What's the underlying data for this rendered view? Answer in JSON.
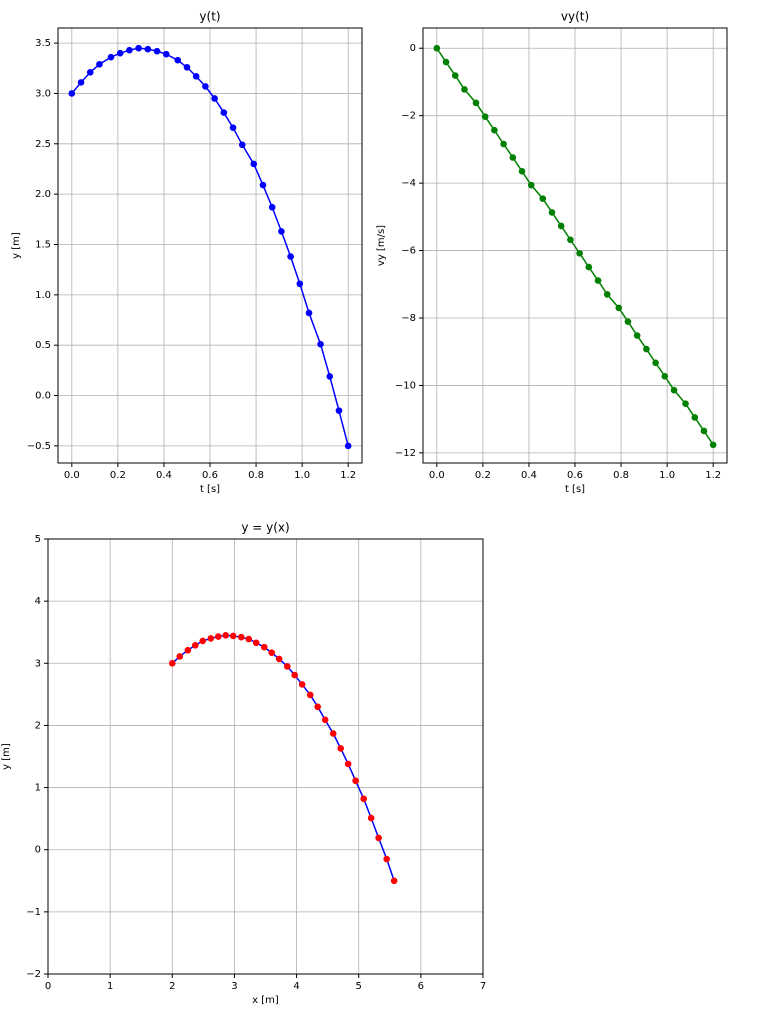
{
  "chart_data": [
    {
      "type": "line",
      "title": "y(t)",
      "xlabel": "t [s]",
      "ylabel": "y [m]",
      "x": [
        0,
        0.04,
        0.08,
        0.12,
        0.17,
        0.21,
        0.25,
        0.29,
        0.33,
        0.37,
        0.41,
        0.46,
        0.5,
        0.54,
        0.58,
        0.62,
        0.66,
        0.7,
        0.74,
        0.79,
        0.83,
        0.87,
        0.91,
        0.95,
        0.99,
        1.03,
        1.08,
        1.12,
        1.16,
        1.2
      ],
      "series": [
        {
          "color": "#0000ff",
          "marker_color": "#0000ff",
          "values": [
            3,
            3.11,
            3.21,
            3.29,
            3.36,
            3.4,
            3.43,
            3.45,
            3.44,
            3.42,
            3.39,
            3.33,
            3.26,
            3.17,
            3.07,
            2.95,
            2.81,
            2.66,
            2.49,
            2.3,
            2.09,
            1.87,
            1.63,
            1.38,
            1.11,
            0.82,
            0.51,
            0.19,
            -0.15,
            -0.5
          ]
        }
      ],
      "xlim": [
        -0.06,
        1.26
      ],
      "ylim": [
        -0.67,
        3.65
      ],
      "xticks": [
        {
          "value": 0,
          "label": "0.0"
        },
        0.2,
        0.4,
        0.6,
        0.8,
        {
          "value": 1,
          "label": "1.0"
        },
        1.2
      ],
      "yticks": [
        {
          "value": -0.5,
          "label": "−0.5"
        },
        {
          "value": 0,
          "label": "0.0"
        },
        0.5,
        {
          "value": 1,
          "label": "1.0"
        },
        1.5,
        {
          "value": 2,
          "label": "2.0"
        },
        2.5,
        {
          "value": 3,
          "label": "3.0"
        },
        3.5
      ],
      "grid": true
    },
    {
      "type": "line",
      "title": "vy(t)",
      "xlabel": "t [s]",
      "ylabel": "vy [m/s]",
      "x": [
        0,
        0.04,
        0.08,
        0.12,
        0.17,
        0.21,
        0.25,
        0.29,
        0.33,
        0.37,
        0.41,
        0.46,
        0.5,
        0.54,
        0.58,
        0.62,
        0.66,
        0.7,
        0.74,
        0.79,
        0.83,
        0.87,
        0.91,
        0.95,
        0.99,
        1.03,
        1.08,
        1.12,
        1.16,
        1.2
      ],
      "series": [
        {
          "color": "#008000",
          "marker_color": "#008000",
          "values": [
            0,
            -0.41,
            -0.81,
            -1.22,
            -1.62,
            -2.03,
            -2.43,
            -2.84,
            -3.24,
            -3.65,
            -4.06,
            -4.46,
            -4.87,
            -5.27,
            -5.68,
            -6.08,
            -6.49,
            -6.89,
            -7.3,
            -7.7,
            -8.11,
            -8.52,
            -8.92,
            -9.33,
            -9.73,
            -10.14,
            -10.54,
            -10.95,
            -11.35,
            -11.76
          ]
        }
      ],
      "xlim": [
        -0.06,
        1.26
      ],
      "ylim": [
        -12.3,
        0.6
      ],
      "xticks": [
        {
          "value": 0,
          "label": "0.0"
        },
        0.2,
        0.4,
        0.6,
        0.8,
        {
          "value": 1,
          "label": "1.0"
        },
        1.2
      ],
      "yticks": [
        {
          "value": -12,
          "label": "−12"
        },
        {
          "value": -10,
          "label": "−10"
        },
        {
          "value": -8,
          "label": "−8"
        },
        {
          "value": -6,
          "label": "−6"
        },
        {
          "value": -4,
          "label": "−4"
        },
        {
          "value": -2,
          "label": "−2"
        },
        0
      ],
      "grid": true
    },
    {
      "type": "line",
      "title": "y = y(x)",
      "xlabel": "x [m]",
      "ylabel": "y [m]",
      "x": [
        2,
        2.12,
        2.25,
        2.37,
        2.49,
        2.62,
        2.74,
        2.86,
        2.98,
        3.11,
        3.23,
        3.35,
        3.48,
        3.6,
        3.72,
        3.85,
        3.97,
        4.09,
        4.22,
        4.34,
        4.46,
        4.59,
        4.71,
        4.83,
        4.95,
        5.08,
        5.2,
        5.32,
        5.45,
        5.57
      ],
      "series": [
        {
          "color": "#0000ff",
          "marker_color": "#ff0000",
          "values": [
            3,
            3.11,
            3.21,
            3.29,
            3.36,
            3.4,
            3.43,
            3.45,
            3.44,
            3.42,
            3.39,
            3.33,
            3.26,
            3.17,
            3.07,
            2.95,
            2.81,
            2.66,
            2.49,
            2.3,
            2.09,
            1.87,
            1.63,
            1.38,
            1.11,
            0.82,
            0.51,
            0.19,
            -0.15,
            -0.5
          ]
        }
      ],
      "xlim": [
        0,
        7
      ],
      "ylim": [
        -2,
        5
      ],
      "xticks": [
        0,
        1,
        2,
        3,
        4,
        5,
        6,
        7
      ],
      "yticks": [
        {
          "value": -2,
          "label": "−2"
        },
        {
          "value": -1,
          "label": "−1"
        },
        0,
        1,
        2,
        3,
        4,
        5
      ],
      "grid": true
    }
  ]
}
